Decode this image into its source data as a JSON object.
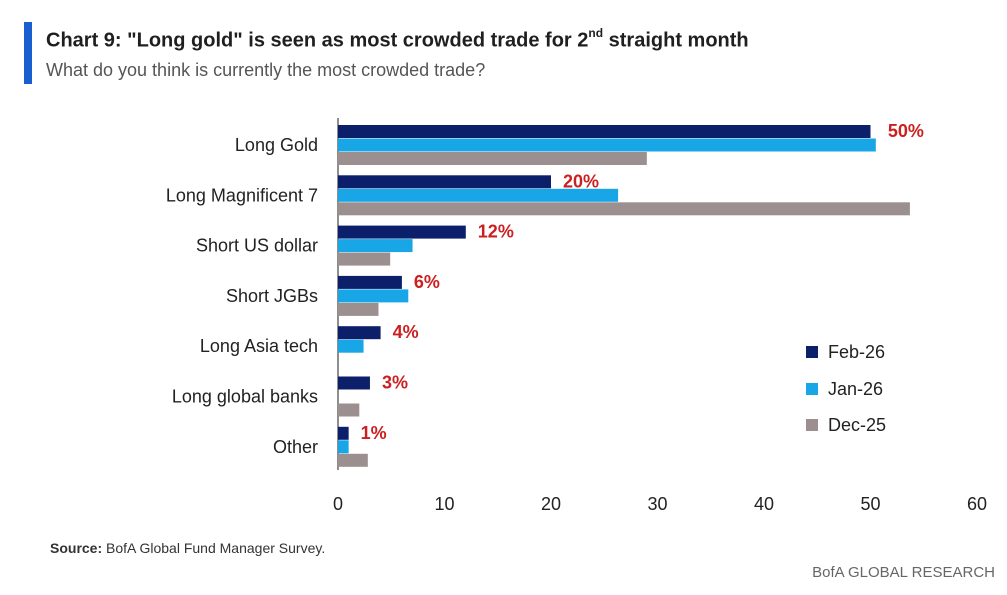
{
  "header": {
    "title_pre": "Chart 9: \"Long gold\" is seen as most crowded trade for 2",
    "title_sup": "nd",
    "title_post": " straight month",
    "subtitle": "What do you think is currently the most crowded trade?"
  },
  "footer": {
    "source_label": "Source:",
    "source_text": " BofA Global Fund Manager Survey.",
    "brand": "BofA GLOBAL RESEARCH"
  },
  "colors": {
    "accent": "#1a5fd0",
    "feb26": "#0b1f6b",
    "jan26": "#19a6e6",
    "dec25": "#9b8f8f",
    "label": "#cc1f1f"
  },
  "chart_data": {
    "type": "bar",
    "orientation": "horizontal",
    "categories": [
      "Long Gold",
      "Long Magnificent 7",
      "Short US dollar",
      "Short JGBs",
      "Long Asia tech",
      "Long global banks",
      "Other"
    ],
    "series": [
      {
        "name": "Feb-26",
        "values": [
          50,
          20,
          12,
          6,
          4,
          3,
          1
        ]
      },
      {
        "name": "Jan-26",
        "values": [
          50.5,
          26.3,
          7,
          6.6,
          2.4,
          0,
          1
        ]
      },
      {
        "name": "Dec-25",
        "values": [
          29,
          53.7,
          4.9,
          3.8,
          0,
          2,
          2.8
        ]
      }
    ],
    "data_labels": [
      "50%",
      "20%",
      "12%",
      "6%",
      "4%",
      "3%",
      "1%"
    ],
    "xticks": [
      "0",
      "10",
      "20",
      "30",
      "40",
      "50",
      "60"
    ],
    "xlim": [
      0,
      60
    ],
    "legend_position": "bottom-right",
    "grid": false
  }
}
